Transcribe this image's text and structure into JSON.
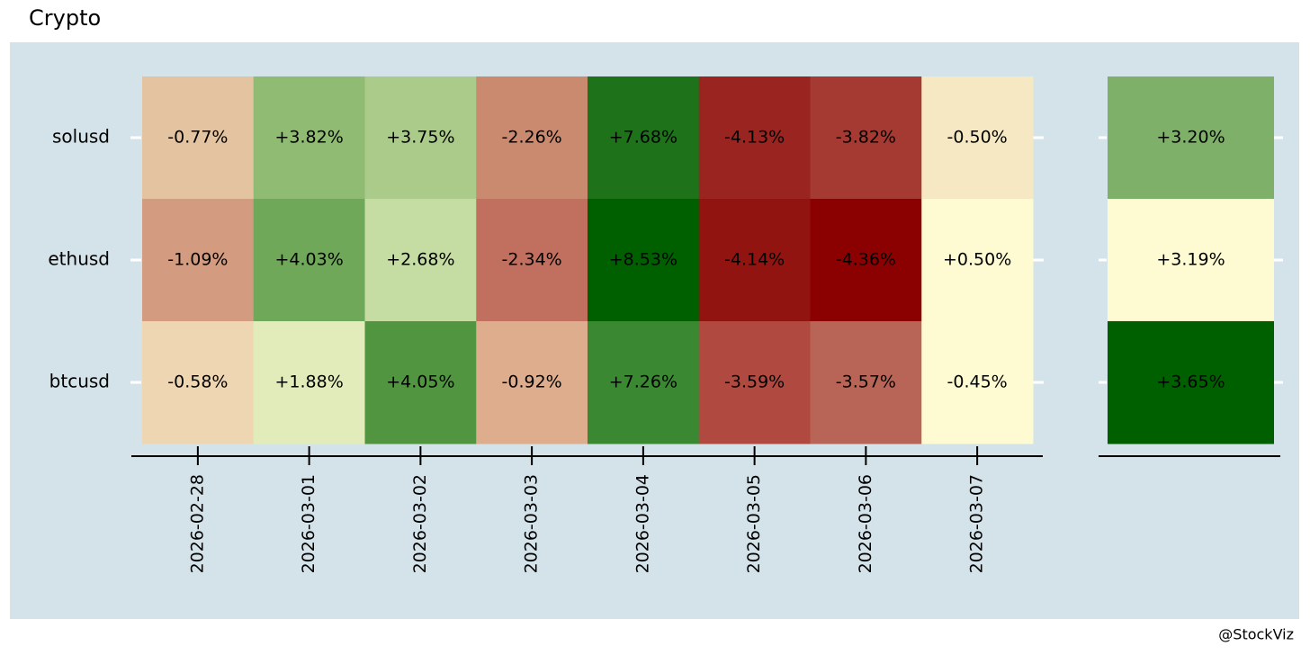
{
  "chart_data": {
    "type": "heatmap",
    "title": "Crypto",
    "rows": [
      "solusd",
      "ethusd",
      "btcusd"
    ],
    "columns": [
      "2026-02-28",
      "2026-03-01",
      "2026-03-02",
      "2026-03-03",
      "2026-03-04",
      "2026-03-05",
      "2026-03-06",
      "2026-03-07"
    ],
    "values": [
      [
        -0.77,
        3.82,
        3.75,
        -2.26,
        7.68,
        -4.13,
        -3.82,
        -0.5
      ],
      [
        -1.09,
        4.03,
        2.68,
        -2.34,
        8.53,
        -4.14,
        -4.36,
        0.5
      ],
      [
        -0.58,
        1.88,
        4.05,
        -0.92,
        7.26,
        -3.59,
        -3.57,
        -0.45
      ]
    ],
    "value_labels": [
      [
        "-0.77%",
        "+3.82%",
        "+3.75%",
        "-2.26%",
        "+7.68%",
        "-4.13%",
        "-3.82%",
        "-0.50%"
      ],
      [
        "-1.09%",
        "+4.03%",
        "+2.68%",
        "-2.34%",
        "+8.53%",
        "-4.14%",
        "-4.36%",
        "+0.50%"
      ],
      [
        "-0.58%",
        "+1.88%",
        "+4.05%",
        "-0.92%",
        "+7.26%",
        "-3.59%",
        "-3.57%",
        "-0.45%"
      ]
    ],
    "colors": [
      [
        "#e3c3a0",
        "#8fbb72",
        "#aacb8a",
        "#c98a70",
        "#1e731a",
        "#9a2420",
        "#a43a32",
        "#f5e8c3"
      ],
      [
        "#d39b80",
        "#70a85a",
        "#c5dca3",
        "#c17060",
        "#006000",
        "#921410",
        "#8b0000",
        "#fefbd3"
      ],
      [
        "#eed6b3",
        "#e2ecbb",
        "#519540",
        "#ddad8e",
        "#3a8832",
        "#b04a40",
        "#b86558",
        "#fefbd3"
      ]
    ],
    "totals": {
      "values": [
        3.2,
        3.19,
        3.65
      ],
      "value_labels": [
        "+3.20%",
        "+3.19%",
        "+3.65%"
      ],
      "colors": [
        "#7fb06a",
        "#fefbd3",
        "#006000"
      ]
    },
    "caption": "@StockViz"
  }
}
